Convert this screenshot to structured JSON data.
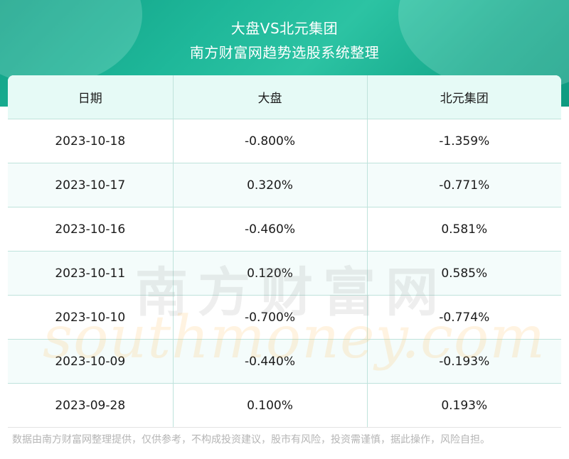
{
  "header": {
    "title": "大盘VS北元集团",
    "subtitle": "南方财富网趋势选股系统整理"
  },
  "table": {
    "columns": [
      "日期",
      "大盘",
      "北元集团"
    ],
    "rows": [
      [
        "2023-10-18",
        "-0.800%",
        "-1.359%"
      ],
      [
        "2023-10-17",
        "0.320%",
        "-0.771%"
      ],
      [
        "2023-10-16",
        "-0.460%",
        "0.581%"
      ],
      [
        "2023-10-11",
        "0.120%",
        "0.585%"
      ],
      [
        "2023-10-10",
        "-0.700%",
        "-0.774%"
      ],
      [
        "2023-10-09",
        "-0.440%",
        "-0.193%"
      ],
      [
        "2023-09-28",
        "0.100%",
        "0.193%"
      ]
    ]
  },
  "watermark": {
    "cn": "南方财富网",
    "en": "southmoney.com"
  },
  "footer": {
    "disclaimer": "数据由南方财富网整理提供，仅供参考，不构成投资建议，股市有风险，投资需谨慎，据此操作，风险自担。"
  },
  "colors": {
    "header_bg": "#1fb89a",
    "header_row_bg": "#e6faf6",
    "border": "#bfe3dc"
  }
}
